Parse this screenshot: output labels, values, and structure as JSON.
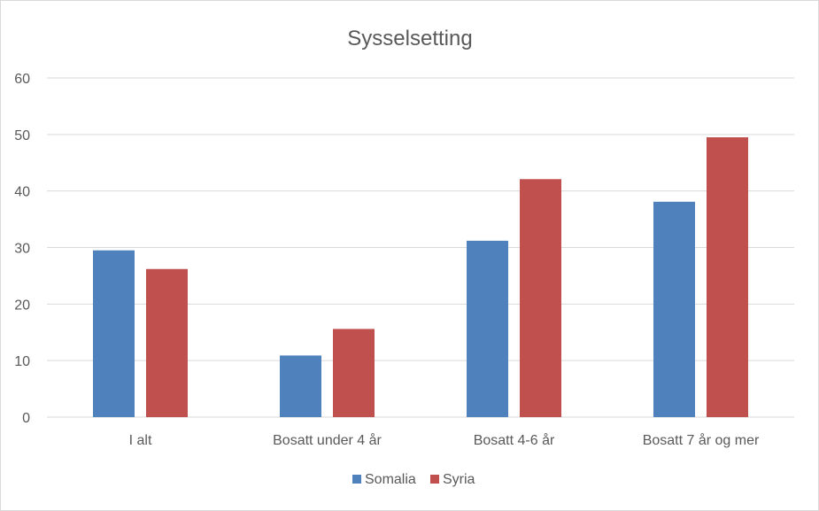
{
  "chart_data": {
    "type": "bar",
    "title": "Sysselsetting",
    "xlabel": "",
    "ylabel": "",
    "categories": [
      "I alt",
      "Bosatt under 4 år",
      "Bosatt 4-6 år",
      "Bosatt 7 år og mer"
    ],
    "series": [
      {
        "name": "Somalia",
        "color": "#4f81bd",
        "values": [
          29.5,
          10.9,
          31.2,
          38.1
        ]
      },
      {
        "name": "Syria",
        "color": "#c0504d",
        "values": [
          26.2,
          15.6,
          42.1,
          49.5
        ]
      }
    ],
    "ylim": [
      0,
      60
    ],
    "yticks": [
      "0",
      "10",
      "20",
      "30",
      "40",
      "50",
      "60"
    ],
    "grid": true,
    "legend_position": "bottom"
  }
}
